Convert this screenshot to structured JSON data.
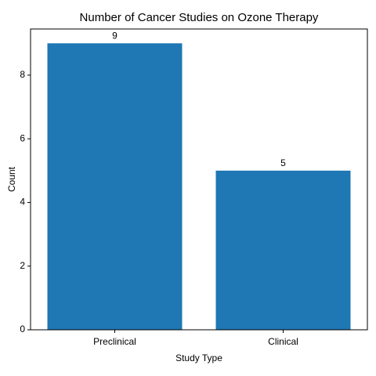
{
  "chart_data": {
    "type": "bar",
    "title": "Number of Cancer Studies on Ozone Therapy",
    "x_label": "Study Type",
    "y_label": "Count",
    "categories": [
      "Preclinical",
      "Clinical"
    ],
    "values": [
      9,
      5
    ],
    "color": "#1f77b4",
    "ylim": [
      0,
      9.45
    ],
    "yticks": [
      0,
      2,
      4,
      6,
      8
    ],
    "grid": false
  }
}
